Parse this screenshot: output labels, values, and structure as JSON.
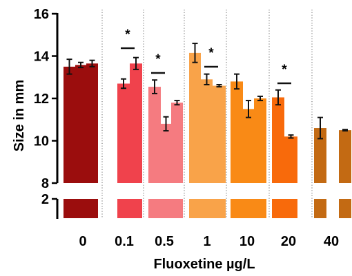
{
  "chart_data": {
    "type": "bar",
    "title": "",
    "xlabel": "Fluoxetine µg/L",
    "ylabel": "Size in mm",
    "ylim": [
      0,
      16
    ],
    "axis_break": [
      2,
      8
    ],
    "y_ticks": [
      "16",
      "14",
      "12",
      "10",
      "8",
      "2"
    ],
    "grid": false,
    "groups": [
      {
        "label": "0",
        "color": "#9b0d0d",
        "values": [
          13.5,
          13.58,
          13.65
        ],
        "errors": [
          0.35,
          0.12,
          0.15
        ],
        "significance": []
      },
      {
        "label": "0.1",
        "color": "#f0424c",
        "values": [
          12.7,
          13.65
        ],
        "errors": [
          0.22,
          0.28
        ],
        "significance": [
          "*"
        ]
      },
      {
        "label": "0.5",
        "color": "#f57b80",
        "values": [
          12.55,
          10.8,
          11.8
        ],
        "errors": [
          0.32,
          0.33,
          0.1
        ],
        "significance": [
          "*"
        ]
      },
      {
        "label": "1",
        "color": "#f9a349",
        "values": [
          14.15,
          12.9,
          12.6
        ],
        "errors": [
          0.45,
          0.25,
          0.05
        ],
        "significance": [
          "*"
        ]
      },
      {
        "label": "10",
        "color": "#f98a16",
        "values": [
          12.8,
          11.5,
          12.0
        ],
        "errors": [
          0.35,
          0.4,
          0.1
        ],
        "significance": []
      },
      {
        "label": "20",
        "color": "#f86a0b",
        "values": [
          12.05,
          10.2
        ],
        "errors": [
          0.35,
          0.07
        ],
        "significance": [
          "*"
        ]
      },
      {
        "label": "40",
        "color": "#c36a13",
        "values": [
          10.6,
          10.5
        ],
        "errors": [
          0.5,
          0.03
        ],
        "significance": []
      }
    ]
  }
}
